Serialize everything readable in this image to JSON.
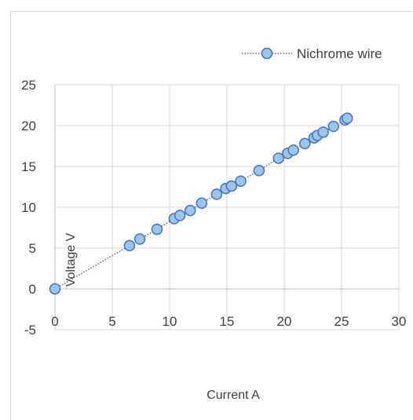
{
  "caption_fragment": "",
  "chart_data": {
    "type": "scatter",
    "title": "",
    "xlabel": "Current A",
    "ylabel": "Voltage V",
    "xlim": [
      0,
      30
    ],
    "ylim": [
      -5,
      25
    ],
    "xticks": [
      0,
      5,
      10,
      15,
      20,
      25,
      30
    ],
    "yticks": [
      -5,
      0,
      5,
      10,
      15,
      20,
      25
    ],
    "grid": true,
    "legend_position": "top-right",
    "series": [
      {
        "name": "Nichrome wire",
        "line_style": "dotted",
        "color": "#4472c4",
        "marker_fill": "#9dc3e6",
        "x": [
          0,
          6.5,
          7.4,
          8.9,
          10.4,
          10.9,
          11.8,
          12.8,
          14.1,
          14.9,
          15.4,
          16.2,
          17.8,
          19.5,
          20.3,
          20.8,
          21.8,
          22.6,
          22.9,
          23.4,
          24.3,
          25.3,
          25.5
        ],
        "y": [
          0,
          5.3,
          6.1,
          7.3,
          8.6,
          9.0,
          9.6,
          10.5,
          11.6,
          12.3,
          12.6,
          13.2,
          14.5,
          16.0,
          16.6,
          17.0,
          17.8,
          18.5,
          18.8,
          19.2,
          19.9,
          20.7,
          20.9
        ]
      }
    ]
  }
}
